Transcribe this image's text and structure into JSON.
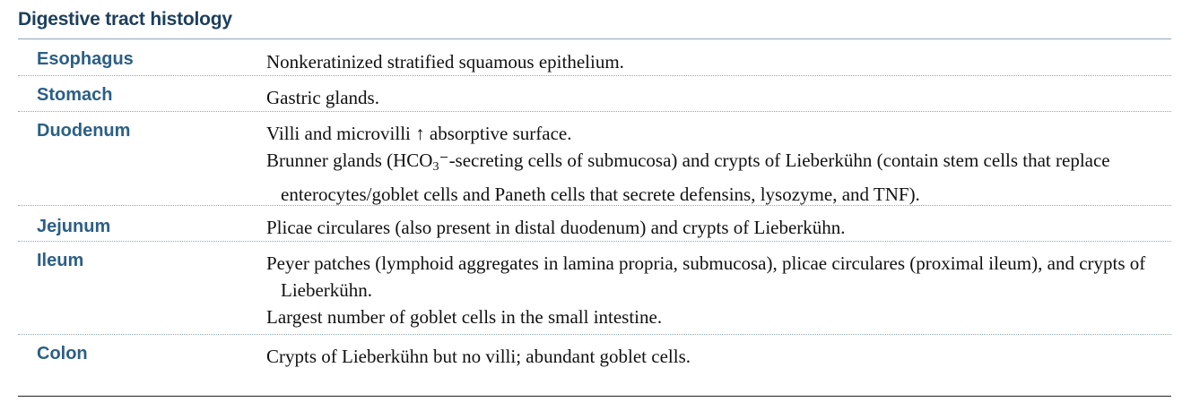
{
  "title": "Digestive tract histology",
  "rows": [
    {
      "term": "Esophagus",
      "paragraphs": [
        {
          "text": "Nonkeratinized stratified squamous epithelium."
        }
      ]
    },
    {
      "term": "Stomach",
      "paragraphs": [
        {
          "text": "Gastric glands."
        }
      ]
    },
    {
      "term": "Duodenum",
      "paragraphs": [
        {
          "text": "Villi and microvilli ↑ absorptive surface."
        },
        {
          "pre": "Brunner glands (HCO",
          "sub": "3",
          "post": "⁻-secreting cells of submucosa) and crypts of Lieberkühn (contain stem cells that replace enterocytes/goblet cells and Paneth cells that secrete defensins, lysozyme, and TNF)."
        }
      ]
    },
    {
      "term": "Jejunum",
      "paragraphs": [
        {
          "text": "Plicae circulares (also present in distal duodenum) and crypts of Lieberkühn."
        }
      ]
    },
    {
      "term": "Ileum",
      "paragraphs": [
        {
          "text": "Peyer patches (lymphoid aggregates in lamina propria, submucosa), plicae circulares (proximal ileum), and crypts of Lieberkühn."
        },
        {
          "text": "Largest number of goblet cells in the small intestine."
        }
      ]
    },
    {
      "term": "Colon",
      "paragraphs": [
        {
          "text": "Crypts of Lieberkühn but no villi; abundant goblet cells."
        }
      ]
    }
  ]
}
